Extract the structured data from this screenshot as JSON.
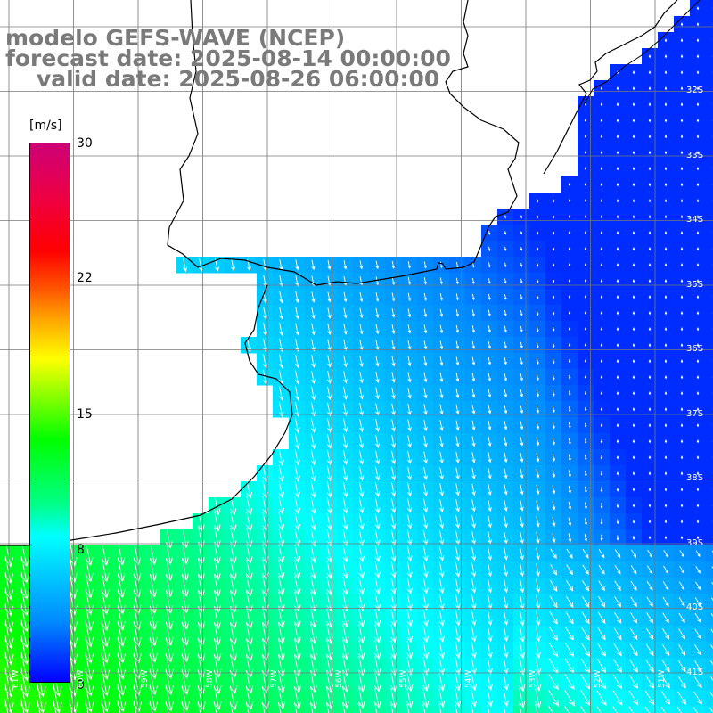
{
  "title": {
    "line1": "modelo GEFS-WAVE (NCEP)",
    "line2": "forecast date: 2025-08-14 00:00:00",
    "line3": "valid date: 2025-08-26 06:00:00"
  },
  "colorbar": {
    "unit": "[m/s]",
    "ticks": [
      "30",
      "22",
      "15",
      "8",
      "0"
    ],
    "min": 0,
    "max": 30
  },
  "map": {
    "lat_labels": [
      "32S",
      "33S",
      "34S",
      "35S",
      "36S",
      "37S",
      "38S",
      "39S",
      "40S",
      "41S"
    ],
    "lon_labels": [
      "61W",
      "60W",
      "59W",
      "58W",
      "57W",
      "56W",
      "55W",
      "54W",
      "53W",
      "52W",
      "51W"
    ],
    "lat_range": [
      -41.5,
      -30.5
    ],
    "lon_range": [
      -61,
      -50
    ],
    "field": "10 m wind speed and direction",
    "colors": {
      "land": "#ffffff",
      "coastline": "#000000",
      "grid": "#777777",
      "arrows": "#ffffff"
    }
  }
}
